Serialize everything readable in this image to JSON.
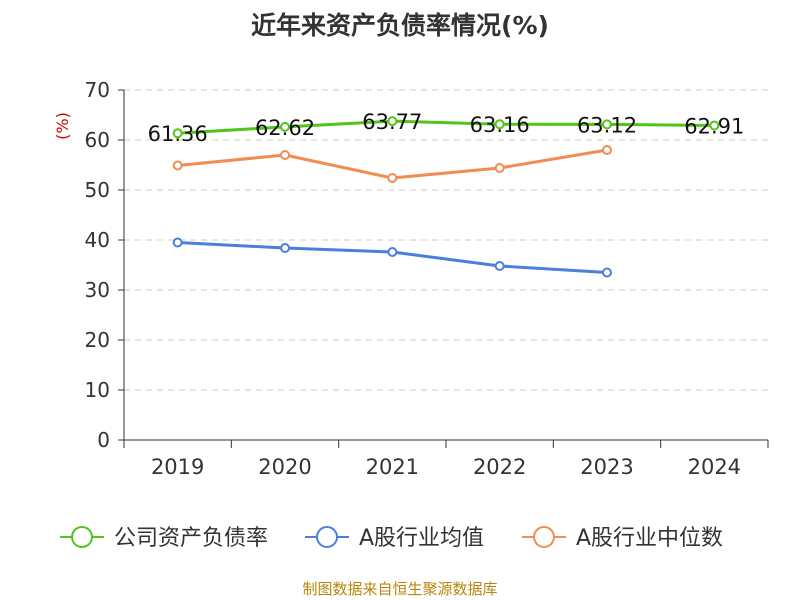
{
  "title": "近年来资产负债率情况(%)",
  "source": "制图数据来自恒生聚源数据库",
  "chart_data": {
    "type": "line",
    "title": "近年来资产负债率情况(%)",
    "ylabel": "(%)",
    "xlabel": "",
    "categories": [
      "2019",
      "2020",
      "2021",
      "2022",
      "2023",
      "2024"
    ],
    "ylim": [
      0,
      70
    ],
    "yticks": [
      0,
      10,
      20,
      30,
      40,
      50,
      60,
      70
    ],
    "grid": true,
    "legend_position": "bottom",
    "series": [
      {
        "name": "公司资产负债率",
        "color": "#52c41a",
        "values": [
          61.36,
          62.62,
          63.77,
          63.16,
          63.12,
          62.91
        ],
        "labels": [
          "61.36",
          "62.62",
          "63.77",
          "63.16",
          "63.12",
          "62.91"
        ]
      },
      {
        "name": "A股行业均值",
        "color": "#4a7fdc",
        "values": [
          39.5,
          38.4,
          37.6,
          34.8,
          33.5,
          null
        ]
      },
      {
        "name": "A股行业中位数",
        "color": "#f28c50",
        "values": [
          54.9,
          57.0,
          52.4,
          54.4,
          58.0,
          null
        ]
      }
    ]
  }
}
